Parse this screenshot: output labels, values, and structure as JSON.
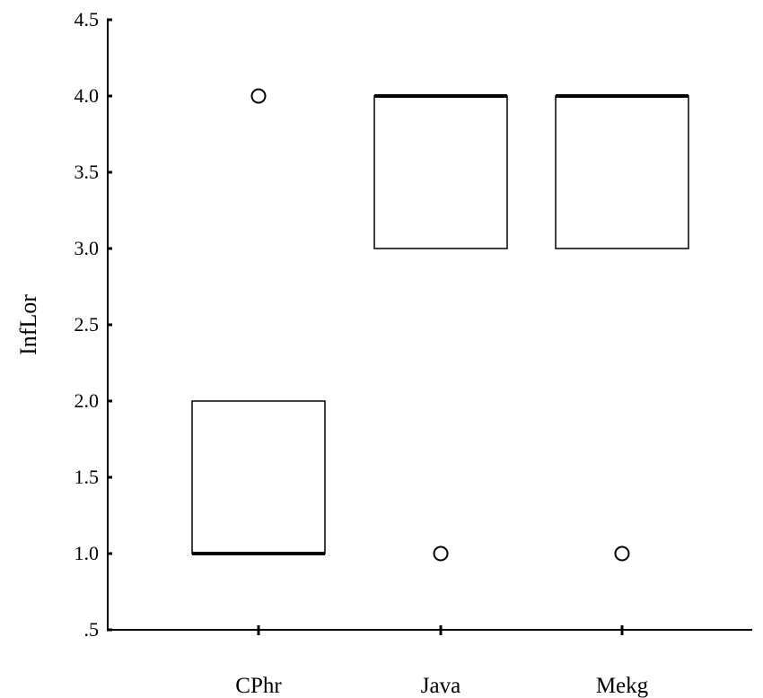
{
  "chart_data": {
    "type": "boxplot",
    "title": "",
    "xlabel": "",
    "ylabel": "InfLor",
    "ylim": [
      0.5,
      4.5
    ],
    "y_ticks": [
      ".5",
      "1.0",
      "1.5",
      "2.0",
      "2.5",
      "3.0",
      "3.5",
      "4.0",
      "4.5"
    ],
    "categories": [
      "CPhr",
      "Java",
      "Mekg"
    ],
    "boxes": [
      {
        "category": "CPhr",
        "q1": 1.0,
        "median": 1.0,
        "q3": 2.0,
        "whisker_low": 1.0,
        "whisker_high": 2.0,
        "outliers": [
          4.0
        ]
      },
      {
        "category": "Java",
        "q1": 3.0,
        "median": 4.0,
        "q3": 4.0,
        "whisker_low": 3.0,
        "whisker_high": 4.0,
        "outliers": [
          1.0
        ]
      },
      {
        "category": "Mekg",
        "q1": 3.0,
        "median": 4.0,
        "q3": 4.0,
        "whisker_low": 3.0,
        "whisker_high": 4.0,
        "outliers": [
          1.0
        ]
      }
    ],
    "grid": false,
    "legend": "none"
  }
}
